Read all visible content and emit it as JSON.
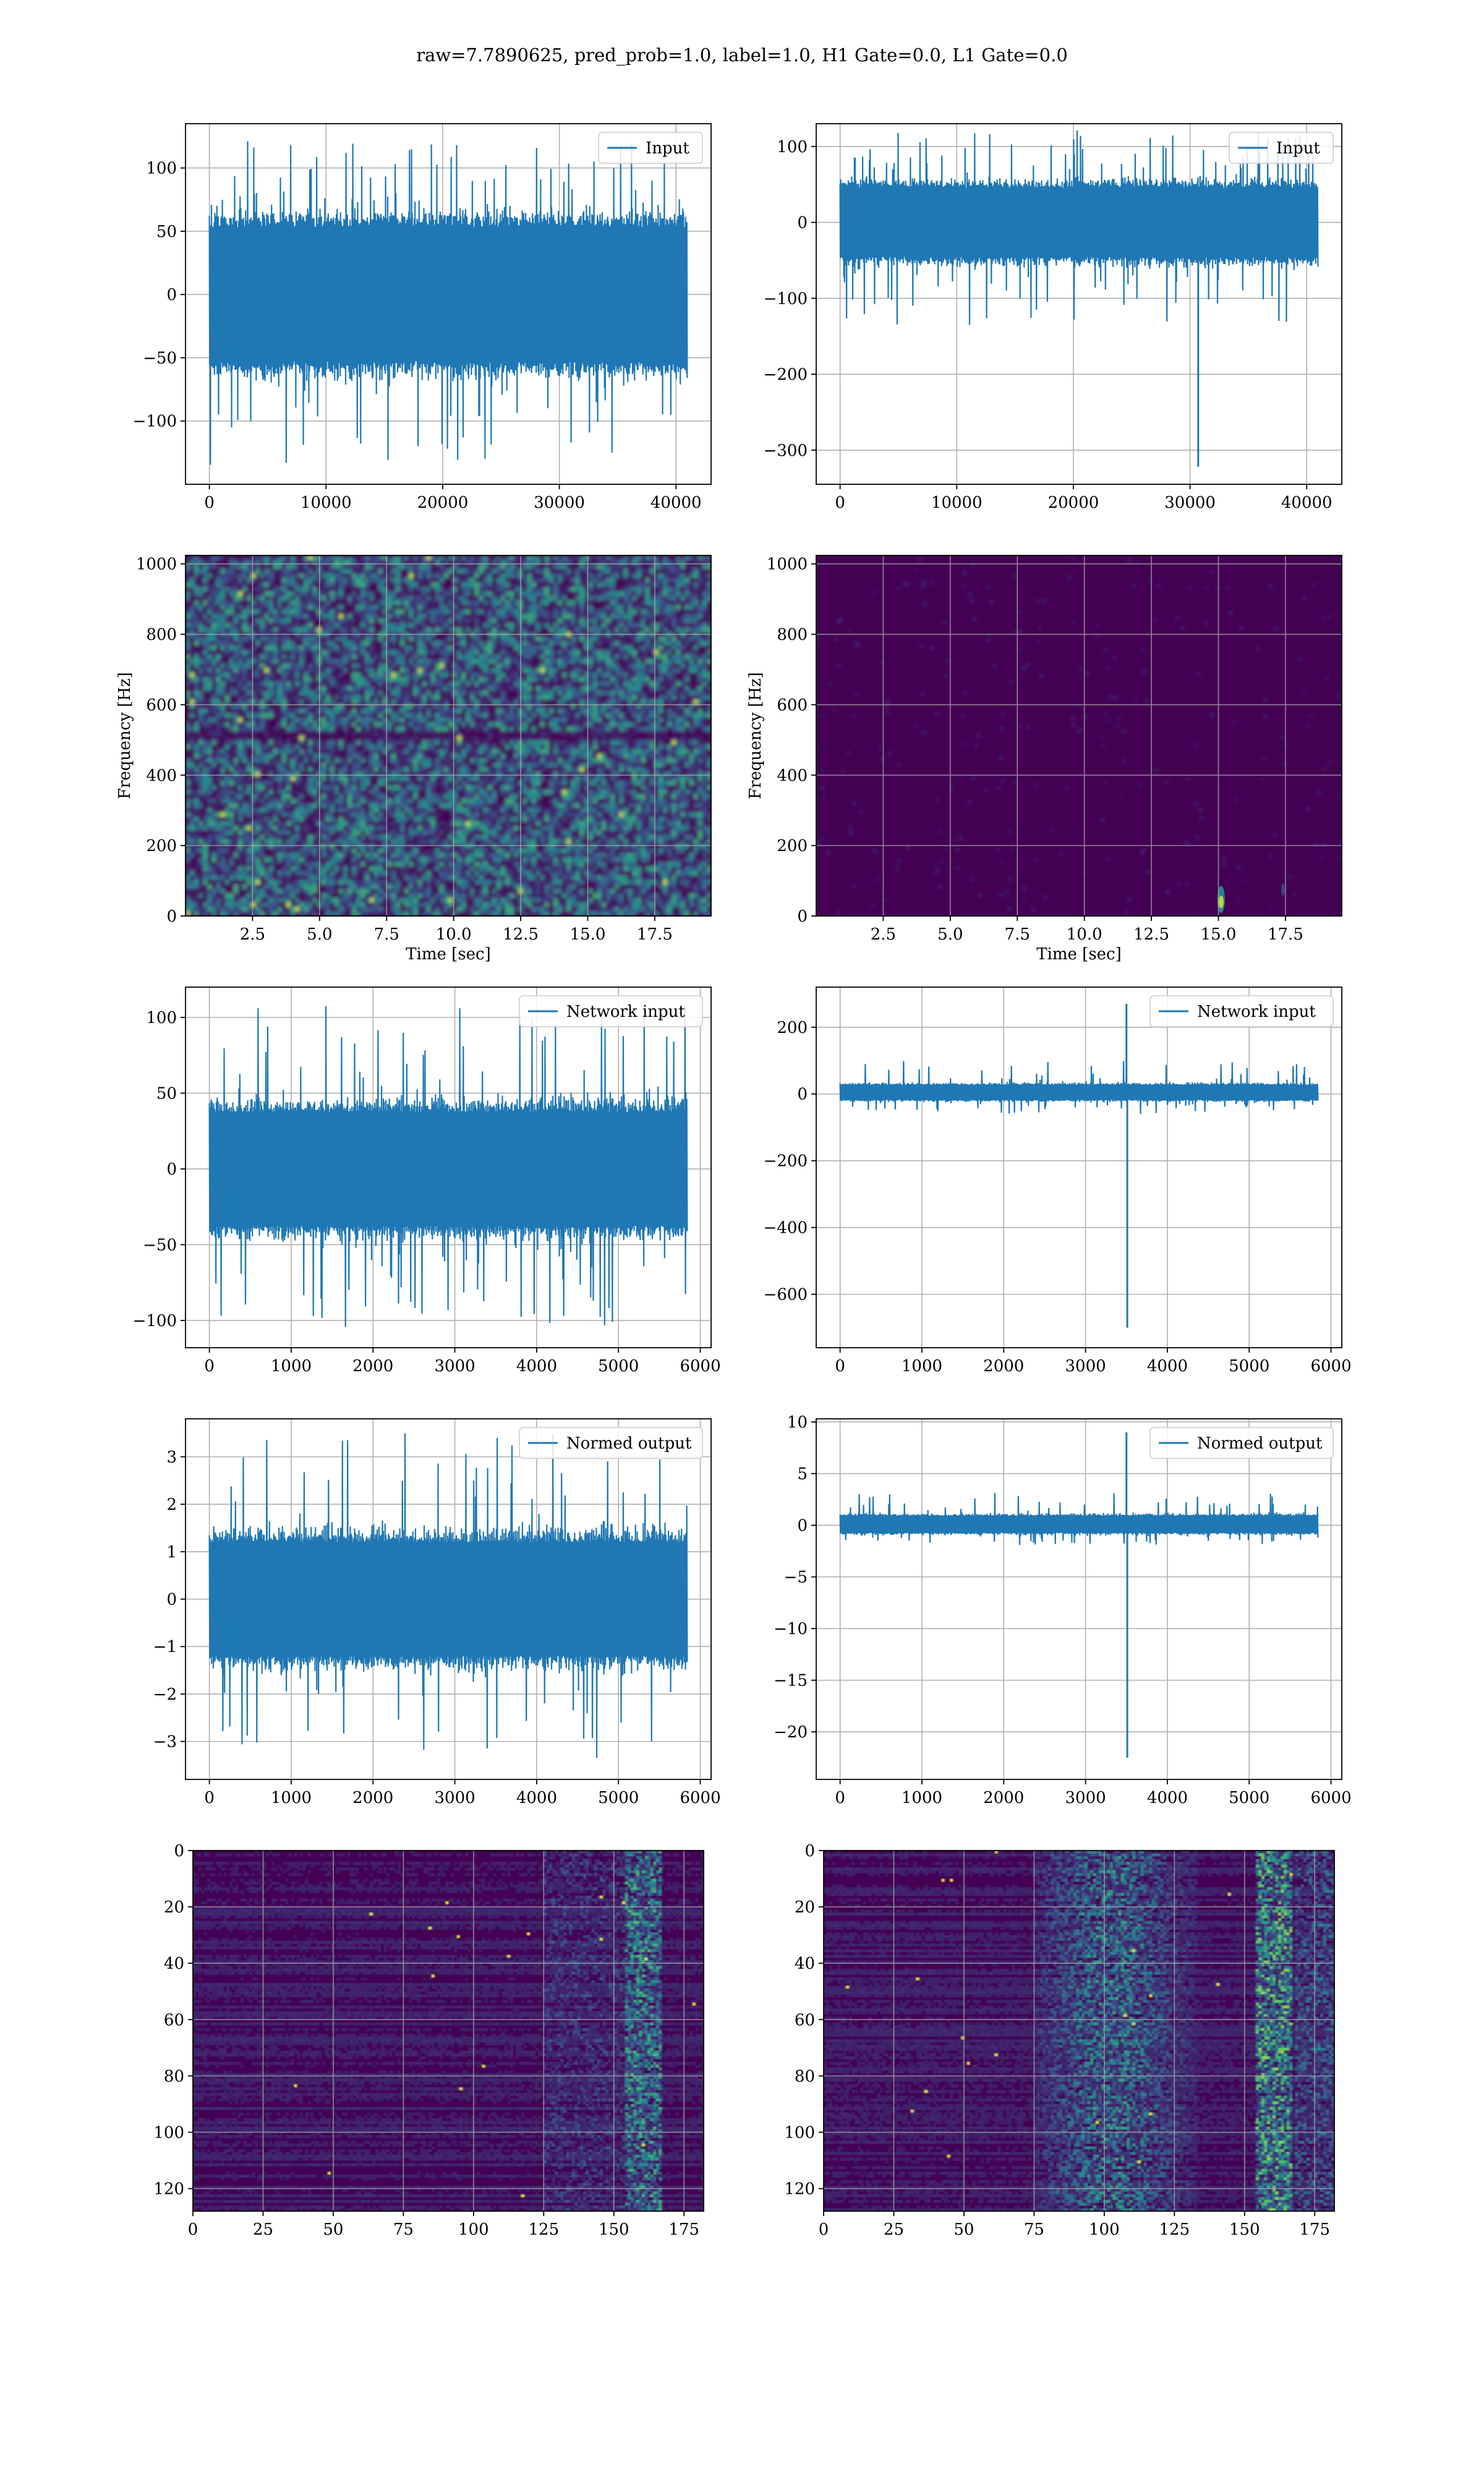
{
  "suptitle": "raw=7.7890625, pred_prob=1.0, label=1.0, H1 Gate=0.0, L1 Gate=0.0",
  "colors": {
    "line": "#1f77b4",
    "grid": "#b0b0b0",
    "viridis_low": "#440154",
    "viridis_mid": "#21918c",
    "viridis_high": "#fde725"
  },
  "chart_data": [
    {
      "id": "input-h1",
      "type": "line",
      "legend": "Input",
      "legend_loc": "upper-right",
      "xlim": [
        -2048,
        43008
      ],
      "ylim": [
        -150,
        135
      ],
      "xticks": [
        0,
        10000,
        20000,
        30000,
        40000
      ],
      "yticks": [
        -100,
        -50,
        0,
        50,
        100
      ],
      "x_range": [
        0,
        40960
      ],
      "samples": 1400,
      "band": [
        -70,
        70
      ],
      "peak_max": 122,
      "peak_min": -135,
      "spikes": [],
      "grid": true
    },
    {
      "id": "input-l1",
      "type": "line",
      "legend": "Input",
      "legend_loc": "upper-right",
      "xlim": [
        -2048,
        43008
      ],
      "ylim": [
        -345,
        130
      ],
      "xticks": [
        0,
        10000,
        20000,
        30000,
        40000
      ],
      "yticks": [
        -300,
        -200,
        -100,
        0,
        100
      ],
      "x_range": [
        0,
        40960
      ],
      "samples": 1400,
      "band": [
        -60,
        60
      ],
      "peak_max": 122,
      "peak_min": -135,
      "spikes": [
        {
          "x": 30700,
          "y": -322
        }
      ],
      "grid": true
    },
    {
      "id": "spectrogram-h1",
      "type": "heatmap",
      "variant": "noise",
      "xlim": [
        0,
        19.6
      ],
      "ylim": [
        0,
        1024
      ],
      "xticks": [
        2.5,
        5.0,
        7.5,
        10.0,
        12.5,
        15.0,
        17.5
      ],
      "xticklabels": [
        "2.5",
        "5.0",
        "7.5",
        "10.0",
        "12.5",
        "15.0",
        "17.5"
      ],
      "yticks": [
        0,
        200,
        400,
        600,
        800,
        1000
      ],
      "xlabel": "Time [sec]",
      "ylabel": "Frequency [Hz]",
      "grid": true
    },
    {
      "id": "spectrogram-l1",
      "type": "heatmap",
      "variant": "dark",
      "xlim": [
        0,
        19.6
      ],
      "ylim": [
        0,
        1024
      ],
      "xticks": [
        2.5,
        5.0,
        7.5,
        10.0,
        12.5,
        15.0,
        17.5
      ],
      "xticklabels": [
        "2.5",
        "5.0",
        "7.5",
        "10.0",
        "12.5",
        "15.0",
        "17.5"
      ],
      "yticks": [
        0,
        200,
        400,
        600,
        800,
        1000
      ],
      "xlabel": "Time [sec]",
      "ylabel": "Frequency [Hz]",
      "hotspot": {
        "x": 15.1,
        "y": 40
      },
      "grid": true
    },
    {
      "id": "network-input-h1",
      "type": "line",
      "legend": "Network input",
      "legend_loc": "upper-right",
      "xlim": [
        -292,
        6132
      ],
      "ylim": [
        -118,
        120
      ],
      "xticks": [
        0,
        1000,
        2000,
        3000,
        4000,
        5000,
        6000
      ],
      "yticks": [
        -100,
        -50,
        0,
        50,
        100
      ],
      "x_range": [
        0,
        5840
      ],
      "samples": 1100,
      "band": [
        -50,
        50
      ],
      "peak_max": 108,
      "peak_min": -105,
      "spikes": [],
      "grid": true
    },
    {
      "id": "network-input-l1",
      "type": "line",
      "legend": "Network input",
      "legend_loc": "upper-right",
      "xlim": [
        -292,
        6132
      ],
      "ylim": [
        -760,
        320
      ],
      "xticks": [
        0,
        1000,
        2000,
        3000,
        4000,
        5000,
        6000
      ],
      "yticks": [
        -600,
        -400,
        -200,
        0,
        200
      ],
      "x_range": [
        0,
        5840
      ],
      "samples": 1100,
      "band": [
        -25,
        35
      ],
      "peak_max": 100,
      "peak_min": -60,
      "spikes": [
        {
          "x": 3500,
          "y": 270
        },
        {
          "x": 3510,
          "y": -700
        }
      ],
      "grid": true
    },
    {
      "id": "normed-output-h1",
      "type": "line",
      "legend": "Normed output",
      "legend_loc": "upper-right",
      "xlim": [
        -292,
        6132
      ],
      "ylim": [
        -3.8,
        3.8
      ],
      "xticks": [
        0,
        1000,
        2000,
        3000,
        4000,
        5000,
        6000
      ],
      "yticks": [
        -3,
        -2,
        -1,
        0,
        1,
        2,
        3
      ],
      "x_range": [
        0,
        5840
      ],
      "samples": 1100,
      "band": [
        -1.6,
        1.6
      ],
      "peak_max": 3.5,
      "peak_min": -3.4,
      "spikes": [],
      "grid": true
    },
    {
      "id": "normed-output-l1",
      "type": "line",
      "legend": "Normed output",
      "legend_loc": "upper-right",
      "xlim": [
        -292,
        6132
      ],
      "ylim": [
        -24.6,
        10.3
      ],
      "xticks": [
        0,
        1000,
        2000,
        3000,
        4000,
        5000,
        6000
      ],
      "yticks": [
        -20,
        -15,
        -10,
        -5,
        0,
        5,
        10
      ],
      "x_range": [
        0,
        5840
      ],
      "samples": 1100,
      "band": [
        -1.0,
        1.2
      ],
      "peak_max": 3.2,
      "peak_min": -2.0,
      "spikes": [
        {
          "x": 3500,
          "y": 9
        },
        {
          "x": 3510,
          "y": -22.5
        }
      ],
      "grid": true
    },
    {
      "id": "feature-map-h1",
      "type": "heatmap",
      "variant": "features-h1",
      "xlim": [
        0,
        182
      ],
      "ylim": [
        128,
        0
      ],
      "xticks": [
        0,
        25,
        50,
        75,
        100,
        125,
        150,
        175
      ],
      "yticks": [
        0,
        20,
        40,
        60,
        80,
        100,
        120
      ],
      "xlabel": "",
      "ylabel": "",
      "grid": true
    },
    {
      "id": "feature-map-l1",
      "type": "heatmap",
      "variant": "features-l1",
      "xlim": [
        0,
        182
      ],
      "ylim": [
        128,
        0
      ],
      "xticks": [
        0,
        25,
        50,
        75,
        100,
        125,
        150,
        175
      ],
      "yticks": [
        0,
        20,
        40,
        60,
        80,
        100,
        120
      ],
      "xlabel": "",
      "ylabel": "",
      "grid": true
    }
  ]
}
